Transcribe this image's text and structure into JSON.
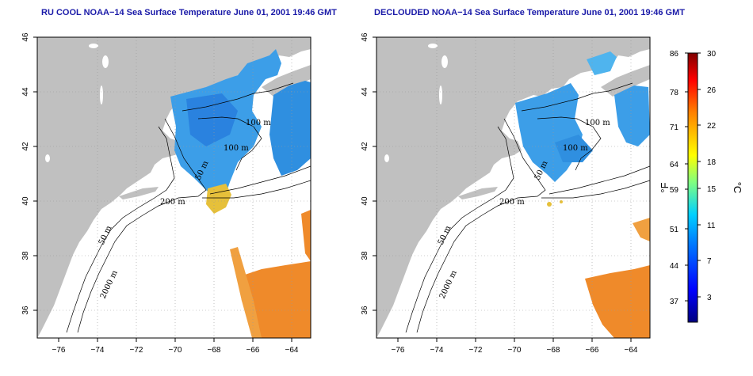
{
  "panels": [
    {
      "id": "ru_cool",
      "title": "RU COOL NOAA−14 Sea Surface Temperature June 01, 2001 19:46 GMT",
      "contour_labels": [
        "100 m",
        "100 m",
        "200 m",
        "50 m",
        "2000 m",
        "50 m"
      ]
    },
    {
      "id": "declouded",
      "title": "DECLOUDED NOAA−14 Sea Surface Temperature June 01, 2001 19:46 GMT",
      "contour_labels": [
        "100 m",
        "100 m",
        "200 m",
        "50 m",
        "2000 m",
        "50 m"
      ]
    }
  ],
  "axes": {
    "x_ticks": [
      "−76",
      "−74",
      "−72",
      "−70",
      "−68",
      "−66",
      "−64"
    ],
    "y_ticks": [
      "46",
      "44",
      "42",
      "40",
      "38",
      "36"
    ],
    "x_range": [
      -77,
      -63
    ],
    "y_range": [
      35,
      46
    ],
    "grid": "dotted"
  },
  "colorbar": {
    "fahrenheit_ticks": [
      "86",
      "78",
      "71",
      "64",
      "59",
      "51",
      "44",
      "37"
    ],
    "celsius_ticks": [
      "30",
      "26",
      "22",
      "18",
      "15",
      "11",
      "7",
      "3"
    ],
    "fahrenheit_label": "°F",
    "celsius_label": "°C",
    "range_celsius": [
      0,
      30
    ],
    "colors": [
      "#00007f",
      "#0000ff",
      "#0080ff",
      "#00ffff",
      "#80ff80",
      "#ffff00",
      "#ff8000",
      "#ff0000",
      "#7f0000"
    ]
  },
  "map_colors": {
    "land": "#c0c0c0",
    "ocean": "#ffffff",
    "cool_water": "#3c9ee8",
    "warm_water": "#ef8a2a"
  }
}
